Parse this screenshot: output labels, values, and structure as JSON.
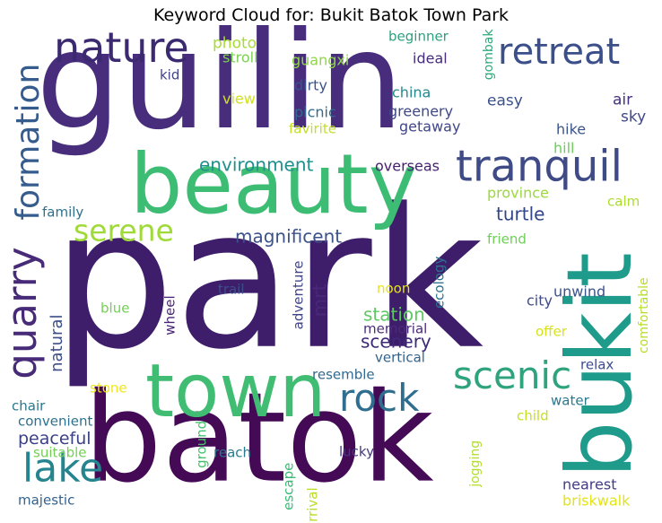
{
  "chart_data": {
    "type": "wordcloud",
    "title": "Keyword Cloud for: Bukit Batok Town Park",
    "words": [
      {
        "text": "guilin",
        "color": "#472d7b"
      },
      {
        "text": "park",
        "color": "#3e1e6b"
      },
      {
        "text": "beauty",
        "color": "#3dbc74"
      },
      {
        "text": "batok",
        "color": "#440a55"
      },
      {
        "text": "town",
        "color": "#40bd72"
      },
      {
        "text": "bukit",
        "color": "#1e9b8a"
      },
      {
        "text": "nature",
        "color": "#3b2a70"
      },
      {
        "text": "retreat",
        "color": "#3b4f8a"
      },
      {
        "text": "tranquil",
        "color": "#3e4b86"
      },
      {
        "text": "quarry",
        "color": "#472a78"
      },
      {
        "text": "formation",
        "color": "#365c8d"
      },
      {
        "text": "serene",
        "color": "#a0da39"
      },
      {
        "text": "rock",
        "color": "#2f6e8e"
      },
      {
        "text": "scenic",
        "color": "#2ea37d"
      },
      {
        "text": "lake",
        "color": "#25848e"
      },
      {
        "text": "environment",
        "color": "#21908d"
      },
      {
        "text": "magnificent",
        "color": "#3b528b"
      },
      {
        "text": "turtle",
        "color": "#31468a"
      },
      {
        "text": "station",
        "color": "#5ec962"
      },
      {
        "text": "scenery",
        "color": "#3f2a78"
      },
      {
        "text": "peaceful",
        "color": "#3b4187"
      },
      {
        "text": "natural",
        "color": "#3d4e8a"
      },
      {
        "text": "mrt",
        "color": "#482878"
      },
      {
        "text": "memorial",
        "color": "#4b2a7a"
      },
      {
        "text": "photo",
        "color": "#a8db34"
      },
      {
        "text": "stroll",
        "color": "#7ad151"
      },
      {
        "text": "guangxi",
        "color": "#8fd744"
      },
      {
        "text": "beginner",
        "color": "#2ca07e"
      },
      {
        "text": "gombak",
        "color": "#2ea97a"
      },
      {
        "text": "kid",
        "color": "#414487"
      },
      {
        "text": "ideal",
        "color": "#472c7a"
      },
      {
        "text": "dirty",
        "color": "#3a548c"
      },
      {
        "text": "view",
        "color": "#d0e11c"
      },
      {
        "text": "china",
        "color": "#238a8d"
      },
      {
        "text": "easy",
        "color": "#3b518b"
      },
      {
        "text": "air",
        "color": "#46307e"
      },
      {
        "text": "sky",
        "color": "#3f4889"
      },
      {
        "text": "picnic",
        "color": "#2f6b8e"
      },
      {
        "text": "favirite",
        "color": "#c2df23"
      },
      {
        "text": "greenery",
        "color": "#3e4989"
      },
      {
        "text": "getaway",
        "color": "#404688"
      },
      {
        "text": "hike",
        "color": "#3a538b"
      },
      {
        "text": "hill",
        "color": "#6ccd5a"
      },
      {
        "text": "overseas",
        "color": "#482173"
      },
      {
        "text": "family",
        "color": "#2d718e"
      },
      {
        "text": "province",
        "color": "#9bd93c"
      },
      {
        "text": "calm",
        "color": "#addc30"
      },
      {
        "text": "friend",
        "color": "#6ece58"
      },
      {
        "text": "ecology",
        "color": "#2c728e"
      },
      {
        "text": "unwind",
        "color": "#3b528b"
      },
      {
        "text": "adventure",
        "color": "#404588"
      },
      {
        "text": "wheel",
        "color": "#482576"
      },
      {
        "text": "trail",
        "color": "#3d4d8a"
      },
      {
        "text": "noon",
        "color": "#e5e419"
      },
      {
        "text": "city",
        "color": "#3e4a89"
      },
      {
        "text": "comfortable",
        "color": "#b5de2b"
      },
      {
        "text": "blue",
        "color": "#73d056"
      },
      {
        "text": "offer",
        "color": "#d8e219"
      },
      {
        "text": "vertical",
        "color": "#33638d"
      },
      {
        "text": "relax",
        "color": "#3e4c8a"
      },
      {
        "text": "resemble",
        "color": "#31688e"
      },
      {
        "text": "stone",
        "color": "#f1e51d"
      },
      {
        "text": "water",
        "color": "#2a788e"
      },
      {
        "text": "chair",
        "color": "#2a768e"
      },
      {
        "text": "child",
        "color": "#c5e021"
      },
      {
        "text": "convenient",
        "color": "#2c718e"
      },
      {
        "text": "jogging",
        "color": "#b2dd2d"
      },
      {
        "text": "suitable",
        "color": "#73d056"
      },
      {
        "text": "ground",
        "color": "#48c16e"
      },
      {
        "text": "reach",
        "color": "#2a798e"
      },
      {
        "text": "escape",
        "color": "#3aba76"
      },
      {
        "text": "lucky",
        "color": "#453781"
      },
      {
        "text": "arrival",
        "color": "#b8de29"
      },
      {
        "text": "nearest",
        "color": "#443b84"
      },
      {
        "text": "majestic",
        "color": "#33638d"
      },
      {
        "text": "briskwalk",
        "color": "#e2e418"
      }
    ]
  }
}
